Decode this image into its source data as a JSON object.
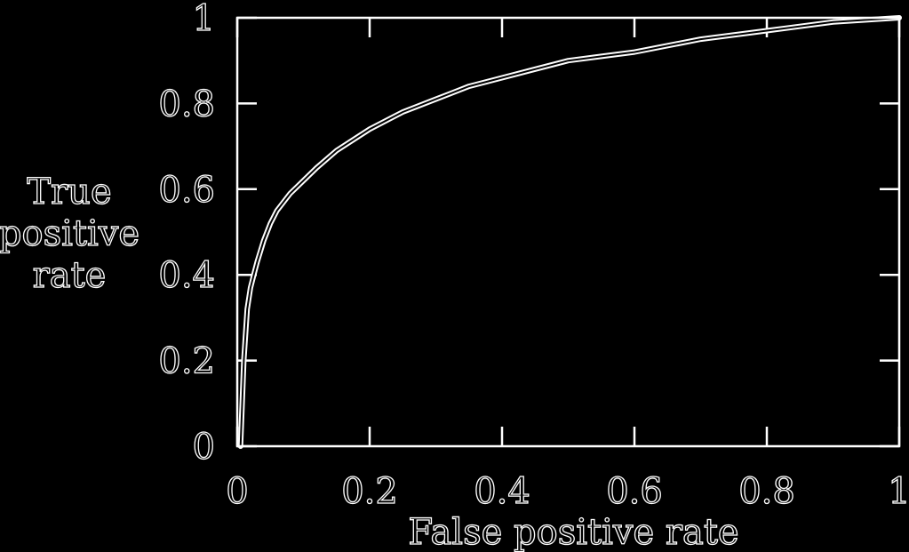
{
  "chart_data": {
    "type": "line",
    "title": "",
    "xlabel": "False positive rate",
    "ylabel_lines": [
      "True",
      "positive",
      "rate"
    ],
    "xlim": [
      0,
      1
    ],
    "ylim": [
      0,
      1
    ],
    "x_ticks": [
      0,
      0.2,
      0.4,
      0.6,
      0.8,
      1
    ],
    "y_ticks": [
      0,
      0.2,
      0.4,
      0.6,
      0.8,
      1
    ],
    "x_tick_labels": [
      "0",
      "0.2",
      "0.4",
      "0.6",
      "0.8",
      "1"
    ],
    "y_tick_labels": [
      "0",
      "0.2",
      "0.4",
      "0.6",
      "0.8",
      "1"
    ],
    "grid": false,
    "legend": "none",
    "colors": {
      "background": "#000000",
      "foreground": "#ffffff"
    },
    "series": [
      {
        "x": [
          0.005,
          0.01,
          0.015,
          0.02,
          0.025,
          0.03,
          0.04,
          0.05,
          0.06,
          0.08,
          0.1,
          0.12,
          0.15,
          0.2,
          0.25,
          0.3,
          0.35,
          0.4,
          0.45,
          0.5,
          0.55,
          0.6,
          0.7,
          0.8,
          0.9,
          1.0
        ],
        "y": [
          0.0,
          0.2,
          0.32,
          0.37,
          0.4,
          0.43,
          0.48,
          0.52,
          0.55,
          0.59,
          0.62,
          0.65,
          0.69,
          0.74,
          0.78,
          0.81,
          0.84,
          0.86,
          0.88,
          0.9,
          0.91,
          0.92,
          0.95,
          0.97,
          0.99,
          1.0
        ]
      }
    ]
  }
}
